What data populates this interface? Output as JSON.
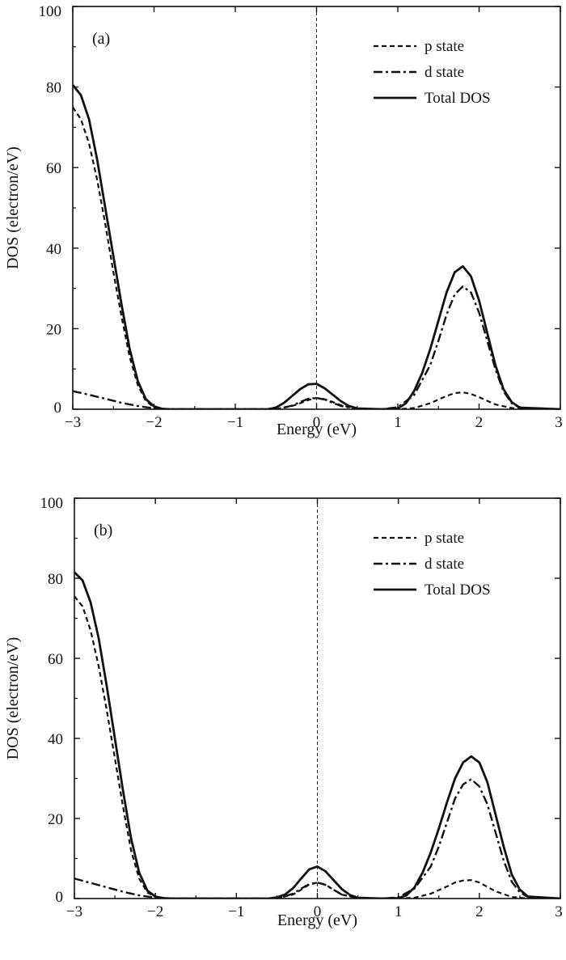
{
  "chart_data": [
    {
      "type": "line",
      "panel_label": "(a)",
      "xlabel": "Energy (eV)",
      "ylabel": "DOS (electron/eV)",
      "xlim": [
        -3,
        3
      ],
      "ylim": [
        0,
        100
      ],
      "xticks": [
        -3,
        -2,
        -1,
        0,
        1,
        2,
        3
      ],
      "xtick_labels": [
        "−3",
        "−2",
        "−1",
        "0",
        "1",
        "2",
        "3"
      ],
      "yticks": [
        0,
        20,
        40,
        60,
        80,
        100
      ],
      "ytick_labels": [
        "0",
        "20",
        "40",
        "60",
        "80",
        "100"
      ],
      "fermi_level_line": 0,
      "grid": false,
      "legend_position": "top-right",
      "series": [
        {
          "name": "p state",
          "style": "dashed",
          "x": [
            -3.0,
            -2.9,
            -2.8,
            -2.7,
            -2.6,
            -2.5,
            -2.4,
            -2.3,
            -2.2,
            -2.1,
            -2.0,
            -1.9,
            -1.8,
            -1.5,
            -1.0,
            -0.5,
            -0.3,
            -0.2,
            -0.1,
            0.0,
            0.1,
            0.2,
            0.3,
            0.5,
            1.0,
            1.2,
            1.4,
            1.6,
            1.7,
            1.8,
            1.9,
            2.0,
            2.2,
            2.4,
            2.6,
            3.0
          ],
          "y": [
            75,
            72,
            66,
            57,
            46,
            34,
            23,
            13,
            6,
            2,
            0.5,
            0.1,
            0,
            0,
            0,
            0,
            0.8,
            1.5,
            2.3,
            2.8,
            2.5,
            1.8,
            1.0,
            0.1,
            0,
            0.3,
            1.5,
            3.3,
            4.0,
            4.2,
            3.8,
            3.0,
            1.2,
            0.3,
            0,
            0
          ]
        },
        {
          "name": "d state",
          "style": "dash-dot",
          "x": [
            -3.0,
            -2.8,
            -2.6,
            -2.4,
            -2.2,
            -2.0,
            -1.8,
            -1.5,
            -1.0,
            -0.5,
            -0.3,
            -0.2,
            -0.1,
            0.0,
            0.1,
            0.2,
            0.3,
            0.5,
            0.8,
            1.0,
            1.2,
            1.4,
            1.5,
            1.6,
            1.7,
            1.8,
            1.9,
            2.0,
            2.1,
            2.2,
            2.3,
            2.4,
            2.5,
            3.0
          ],
          "y": [
            4.5,
            3.6,
            2.6,
            1.6,
            0.8,
            0.2,
            0,
            0,
            0,
            0,
            0.9,
            1.8,
            2.6,
            2.8,
            2.4,
            1.6,
            0.8,
            0.1,
            0,
            0.5,
            3.5,
            11,
            17,
            23.5,
            28.5,
            30.5,
            29,
            24,
            17,
            10,
            4.5,
            1.5,
            0.4,
            0
          ]
        },
        {
          "name": "Total DOS",
          "style": "solid",
          "x": [
            -3.0,
            -2.9,
            -2.8,
            -2.7,
            -2.6,
            -2.5,
            -2.4,
            -2.3,
            -2.2,
            -2.1,
            -2.0,
            -1.9,
            -1.8,
            -1.5,
            -1.0,
            -0.6,
            -0.5,
            -0.4,
            -0.3,
            -0.2,
            -0.1,
            0.0,
            0.1,
            0.2,
            0.3,
            0.4,
            0.5,
            0.8,
            1.0,
            1.1,
            1.2,
            1.3,
            1.4,
            1.5,
            1.6,
            1.7,
            1.8,
            1.9,
            2.0,
            2.1,
            2.2,
            2.3,
            2.4,
            2.5,
            3.0
          ],
          "y": [
            80.5,
            78,
            72,
            62,
            50,
            38,
            26,
            15,
            7,
            2.5,
            0.7,
            0.1,
            0,
            0,
            0,
            0,
            0.4,
            1.6,
            3.3,
            5.0,
            6.2,
            6.3,
            5.2,
            3.6,
            2.0,
            0.8,
            0.2,
            0,
            0.2,
            1.5,
            4.5,
            9,
            15,
            22,
            29,
            34,
            35.5,
            33,
            27,
            19,
            11,
            5,
            1.8,
            0.4,
            0
          ]
        }
      ]
    },
    {
      "type": "line",
      "panel_label": "(b)",
      "xlabel": "Energy (eV)",
      "ylabel": "DOS (electron/eV)",
      "xlim": [
        -3,
        3
      ],
      "ylim": [
        0,
        100
      ],
      "xticks": [
        -3,
        -2,
        -1,
        0,
        1,
        2,
        3
      ],
      "xtick_labels": [
        "−3",
        "−2",
        "−1",
        "0",
        "1",
        "2",
        "3"
      ],
      "yticks": [
        0,
        20,
        40,
        60,
        80,
        100
      ],
      "ytick_labels": [
        "0",
        "20",
        "40",
        "60",
        "80",
        "100"
      ],
      "fermi_level_line": 0,
      "grid": false,
      "legend_position": "top-right",
      "series": [
        {
          "name": "p state",
          "style": "dashed",
          "x": [
            -3.0,
            -2.9,
            -2.8,
            -2.7,
            -2.6,
            -2.5,
            -2.4,
            -2.3,
            -2.2,
            -2.1,
            -2.0,
            -1.9,
            -1.8,
            -1.5,
            -1.0,
            -0.5,
            -0.3,
            -0.2,
            -0.1,
            0.0,
            0.1,
            0.2,
            0.3,
            0.5,
            1.0,
            1.2,
            1.4,
            1.6,
            1.7,
            1.8,
            1.9,
            2.0,
            2.2,
            2.4,
            2.6,
            3.0
          ],
          "y": [
            75.5,
            73,
            67,
            58,
            47,
            35,
            23,
            12,
            5,
            1.5,
            0.4,
            0.1,
            0,
            0,
            0,
            0,
            1.0,
            2.2,
            3.5,
            4.0,
            3.5,
            2.2,
            1.0,
            0.1,
            0,
            0.2,
            1.2,
            3.0,
            4.0,
            4.5,
            4.6,
            4.0,
            1.8,
            0.4,
            0,
            0
          ]
        },
        {
          "name": "d state",
          "style": "dash-dot",
          "x": [
            -3.0,
            -2.8,
            -2.6,
            -2.4,
            -2.2,
            -2.0,
            -1.8,
            -1.5,
            -1.0,
            -0.5,
            -0.3,
            -0.2,
            -0.1,
            0.0,
            0.1,
            0.2,
            0.3,
            0.5,
            0.8,
            1.0,
            1.2,
            1.4,
            1.5,
            1.6,
            1.7,
            1.8,
            1.9,
            2.0,
            2.1,
            2.2,
            2.3,
            2.4,
            2.5,
            2.6,
            3.0
          ],
          "y": [
            5.0,
            3.9,
            2.8,
            1.7,
            0.8,
            0.2,
            0,
            0,
            0,
            0,
            1.2,
            2.5,
            3.6,
            4.0,
            3.4,
            2.2,
            1.0,
            0.1,
            0,
            0.3,
            2.5,
            8,
            13,
            19,
            25,
            28.5,
            29.8,
            28,
            23.5,
            16.5,
            9.5,
            4.2,
            1.5,
            0.4,
            0
          ]
        },
        {
          "name": "Total DOS",
          "style": "solid",
          "x": [
            -3.0,
            -2.9,
            -2.8,
            -2.7,
            -2.6,
            -2.5,
            -2.4,
            -2.3,
            -2.2,
            -2.1,
            -2.0,
            -1.9,
            -1.8,
            -1.5,
            -1.0,
            -0.6,
            -0.5,
            -0.4,
            -0.3,
            -0.2,
            -0.1,
            0.0,
            0.1,
            0.2,
            0.3,
            0.4,
            0.5,
            0.8,
            1.0,
            1.1,
            1.2,
            1.3,
            1.4,
            1.5,
            1.6,
            1.7,
            1.8,
            1.9,
            2.0,
            2.1,
            2.2,
            2.3,
            2.4,
            2.5,
            2.6,
            3.0
          ],
          "y": [
            81.5,
            79.5,
            74,
            65,
            53,
            40,
            27,
            15,
            6.5,
            2.0,
            0.5,
            0.1,
            0,
            0,
            0,
            0,
            0.3,
            1.0,
            2.6,
            5.0,
            7.3,
            8.0,
            6.8,
            4.6,
            2.4,
            0.9,
            0.2,
            0,
            0.1,
            0.8,
            2.8,
            6.5,
            11.5,
            17.5,
            24,
            30,
            34,
            35.5,
            34,
            29,
            21,
            13,
            6,
            2.2,
            0.5,
            0
          ]
        }
      ]
    }
  ]
}
